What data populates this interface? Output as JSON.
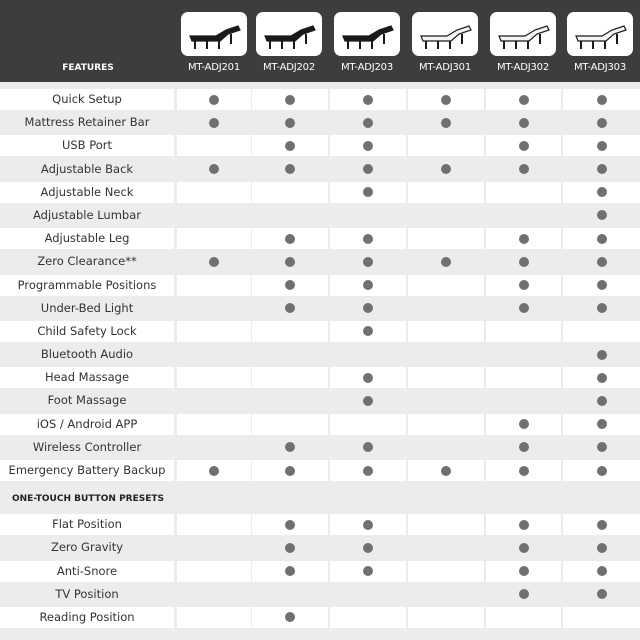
{
  "header": {
    "features_label": "FEATURES"
  },
  "products": [
    {
      "name": "MT-ADJ201",
      "style": "dark"
    },
    {
      "name": "MT-ADJ202",
      "style": "dark"
    },
    {
      "name": "MT-ADJ203",
      "style": "dark"
    },
    {
      "name": "MT-ADJ301",
      "style": "light"
    },
    {
      "name": "MT-ADJ302",
      "style": "light"
    },
    {
      "name": "MT-ADJ303",
      "style": "light"
    }
  ],
  "features": [
    {
      "label": "Quick Setup",
      "has": [
        1,
        1,
        1,
        1,
        1,
        1
      ]
    },
    {
      "label": "Mattress Retainer Bar",
      "has": [
        1,
        1,
        1,
        1,
        1,
        1
      ]
    },
    {
      "label": "USB Port",
      "has": [
        0,
        1,
        1,
        0,
        1,
        1
      ]
    },
    {
      "label": "Adjustable Back",
      "has": [
        1,
        1,
        1,
        1,
        1,
        1
      ]
    },
    {
      "label": "Adjustable Neck",
      "has": [
        0,
        0,
        1,
        0,
        0,
        1
      ]
    },
    {
      "label": "Adjustable Lumbar",
      "has": [
        0,
        0,
        0,
        0,
        0,
        1
      ]
    },
    {
      "label": "Adjustable Leg",
      "has": [
        0,
        1,
        1,
        0,
        1,
        1
      ]
    },
    {
      "label": "Zero Clearance**",
      "has": [
        1,
        1,
        1,
        1,
        1,
        1
      ]
    },
    {
      "label": "Programmable Positions",
      "has": [
        0,
        1,
        1,
        0,
        1,
        1
      ]
    },
    {
      "label": "Under-Bed Light",
      "has": [
        0,
        1,
        1,
        0,
        1,
        1
      ]
    },
    {
      "label": "Child Safety Lock",
      "has": [
        0,
        0,
        1,
        0,
        0,
        0
      ]
    },
    {
      "label": "Bluetooth Audio",
      "has": [
        0,
        0,
        0,
        0,
        0,
        1
      ]
    },
    {
      "label": "Head Massage",
      "has": [
        0,
        0,
        1,
        0,
        0,
        1
      ]
    },
    {
      "label": "Foot Massage",
      "has": [
        0,
        0,
        1,
        0,
        0,
        1
      ]
    },
    {
      "label": "iOS / Android APP",
      "has": [
        0,
        0,
        0,
        0,
        1,
        1
      ]
    },
    {
      "label": "Wireless Controller",
      "has": [
        0,
        1,
        1,
        0,
        1,
        1
      ]
    },
    {
      "label": "Emergency Battery Backup",
      "has": [
        1,
        1,
        1,
        1,
        1,
        1
      ]
    }
  ],
  "presets_section": {
    "title": "ONE-TOUCH BUTTON PRESETS"
  },
  "presets": [
    {
      "label": "Flat Position",
      "has": [
        0,
        1,
        1,
        0,
        1,
        1
      ]
    },
    {
      "label": "Zero Gravity",
      "has": [
        0,
        1,
        1,
        0,
        1,
        1
      ]
    },
    {
      "label": "Anti-Snore",
      "has": [
        0,
        1,
        1,
        0,
        1,
        1
      ]
    },
    {
      "label": "TV Position",
      "has": [
        0,
        0,
        0,
        0,
        1,
        1
      ]
    },
    {
      "label": "Reading Position",
      "has": [
        0,
        1,
        0,
        0,
        0,
        0
      ]
    }
  ],
  "colors": {
    "header_bg": "#3d3d3d",
    "dot": "#707070",
    "row_alt": "#ececec"
  }
}
